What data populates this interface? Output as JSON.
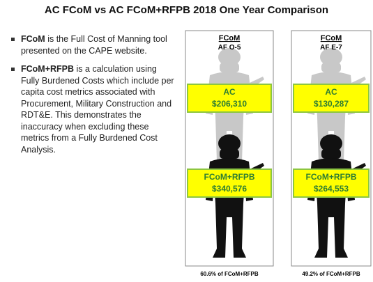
{
  "title": "AC FCoM vs AC FCoM+RFPB 2018 One Year Comparison",
  "bullets": [
    {
      "term": "FCoM",
      "text": " is the Full Cost of Manning tool presented on the CAPE website."
    },
    {
      "term": "FCoM+RFPB",
      "text": " is a calculation using Fully Burdened Costs which include per capita cost metrics associated with Procurement, Military Construction and RDT&E. This demonstrates the inaccuracy when excluding these metrics from a Fully Burdened Cost Analysis."
    }
  ],
  "panels": [
    {
      "heading": "FCoM",
      "grade": "AF O-5",
      "ac_label": "AC",
      "ac_value": "$206,310",
      "full_label": "FCoM+RFPB",
      "full_value": "$340,576",
      "bottom_label": "FCoM",
      "footnote": "60.6% of FCoM+RFPB"
    },
    {
      "heading": "FCoM",
      "grade": "AF E-7",
      "ac_label": "AC",
      "ac_value": "$130,287",
      "full_label": "FCoM+RFPB",
      "full_value": "$264,553",
      "bottom_label": "FCoM",
      "footnote": "49.2% of FCoM+RFPB"
    }
  ]
}
